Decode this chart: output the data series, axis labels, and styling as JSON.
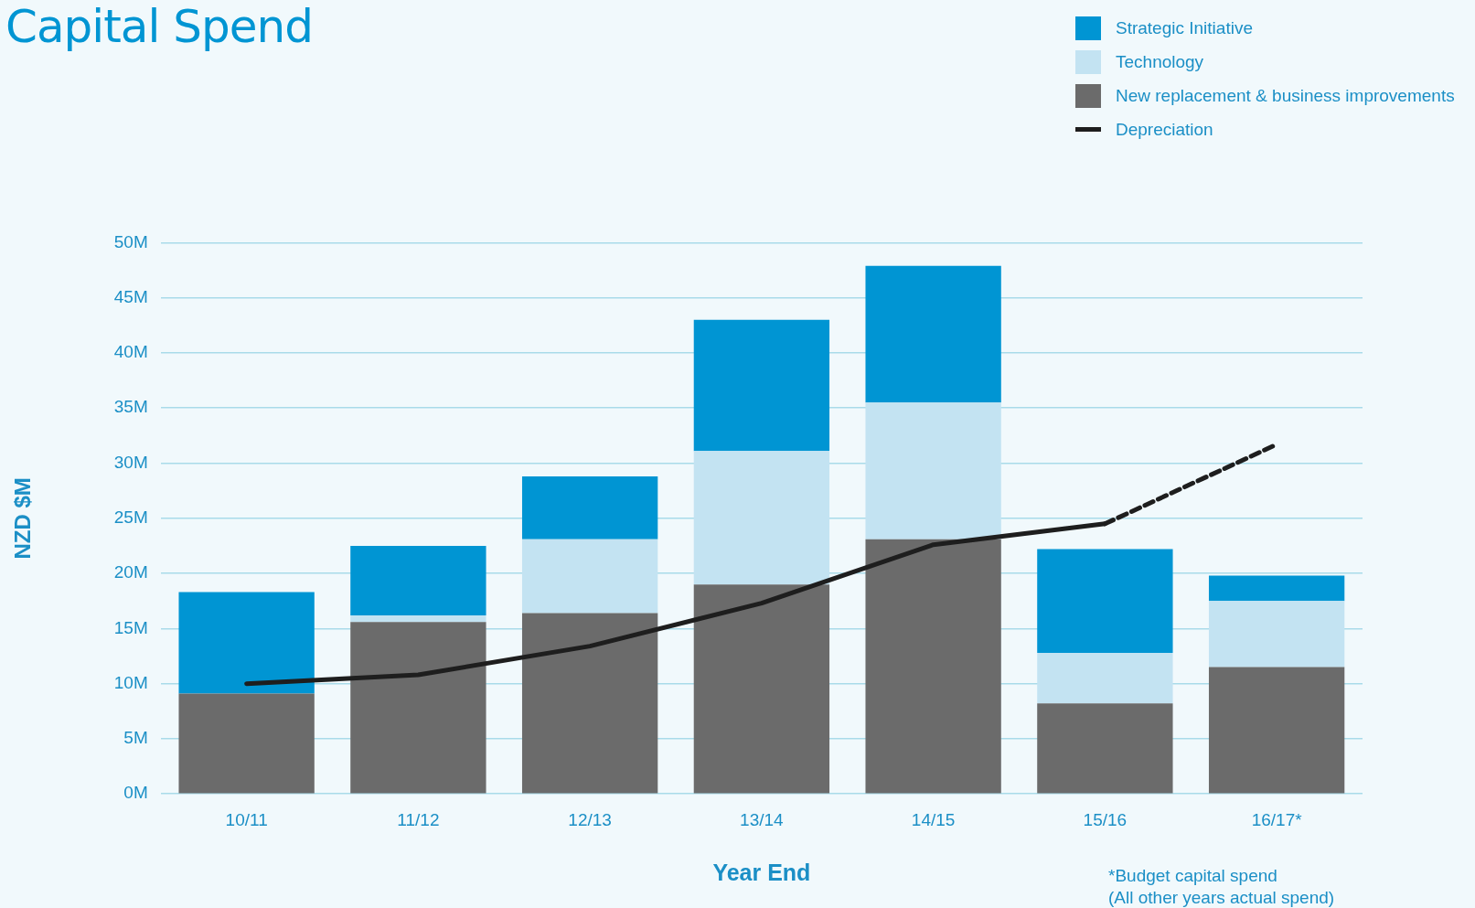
{
  "chart_data": {
    "type": "bar",
    "title": "Capital Spend",
    "xlabel": "Year End",
    "ylabel": "NZD $M",
    "categories": [
      "10/11",
      "11/12",
      "12/13",
      "13/14",
      "14/15",
      "15/16",
      "16/17*"
    ],
    "stacked": true,
    "series": [
      {
        "name": "New replacement & business improvements",
        "color": "#6b6b6b",
        "values": [
          9.1,
          15.6,
          16.4,
          19.0,
          23.1,
          8.2,
          11.5
        ]
      },
      {
        "name": "Technology",
        "color": "#c3e3f2",
        "values": [
          0,
          0.6,
          6.7,
          12.1,
          12.4,
          4.6,
          6.0
        ]
      },
      {
        "name": "Strategic Initiative",
        "color": "#0095d3",
        "values": [
          9.2,
          6.3,
          5.7,
          11.9,
          12.4,
          9.4,
          2.3
        ]
      },
      {
        "name": "Depreciation",
        "type": "line",
        "color": "#1e1e1e",
        "line_style": "solid",
        "values": [
          10.0,
          10.8,
          13.4,
          17.3,
          22.6,
          24.5,
          null
        ]
      },
      {
        "type": "line",
        "color": "#1e1e1e",
        "line_style": "dashed",
        "values": [
          null,
          null,
          null,
          null,
          null,
          24.5,
          31.7
        ]
      }
    ],
    "ylim": [
      0,
      50
    ],
    "yticks": [
      {
        "value": 0,
        "label": "0M"
      },
      {
        "value": 5,
        "label": "5M"
      },
      {
        "value": 10,
        "label": "10M"
      },
      {
        "value": 15,
        "label": "15M"
      },
      {
        "value": 20,
        "label": "20M"
      },
      {
        "value": 25,
        "label": "25M"
      },
      {
        "value": 30,
        "label": "30M"
      },
      {
        "value": 35,
        "label": "35M"
      },
      {
        "value": 40,
        "label": "40M"
      },
      {
        "value": 45,
        "label": "45M"
      },
      {
        "value": 50,
        "label": "50M"
      }
    ],
    "grid": "y",
    "legend": "top right",
    "marker": "none",
    "annotations": [
      "*Budget capital spend\n(All other years actual spend)"
    ]
  }
}
